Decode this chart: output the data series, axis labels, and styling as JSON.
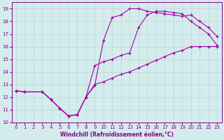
{
  "xlabel": "Windchill (Refroidissement éolien,°C)",
  "ylabel": "",
  "bg_color": "#d4ecec",
  "line_color": "#aa00aa",
  "xlim": [
    -0.5,
    23.5
  ],
  "ylim": [
    10,
    19.5
  ],
  "yticks": [
    10,
    11,
    12,
    13,
    14,
    15,
    16,
    17,
    18,
    19
  ],
  "xticks": [
    0,
    1,
    2,
    3,
    4,
    5,
    6,
    7,
    8,
    9,
    10,
    11,
    12,
    13,
    14,
    15,
    16,
    17,
    18,
    19,
    20,
    21,
    22,
    23
  ],
  "line1_x": [
    0,
    1,
    3,
    4,
    5,
    6,
    7,
    8,
    9,
    10,
    11,
    12,
    13,
    14,
    15,
    16,
    17,
    18,
    19,
    20,
    21,
    22,
    23
  ],
  "line1_y": [
    12.5,
    12.4,
    12.4,
    11.8,
    11.1,
    10.5,
    10.6,
    12.0,
    12.9,
    16.5,
    18.3,
    18.5,
    19.0,
    19.0,
    18.8,
    18.7,
    18.6,
    18.5,
    18.4,
    18.5,
    18.0,
    17.5,
    16.8
  ],
  "line2_x": [
    0,
    1,
    3,
    4,
    5,
    6,
    7,
    8,
    9,
    10,
    11,
    12,
    13,
    14,
    15,
    16,
    17,
    18,
    19,
    20,
    21,
    22,
    23
  ],
  "line2_y": [
    12.5,
    12.4,
    12.4,
    11.8,
    11.1,
    10.5,
    10.6,
    12.0,
    14.5,
    14.8,
    15.0,
    15.3,
    15.5,
    17.5,
    18.5,
    18.8,
    18.8,
    18.7,
    18.6,
    18.0,
    17.5,
    17.0,
    16.1
  ],
  "line3_x": [
    0,
    1,
    3,
    4,
    5,
    6,
    7,
    8,
    9,
    10,
    11,
    12,
    13,
    14,
    15,
    16,
    17,
    18,
    19,
    20,
    21,
    22,
    23
  ],
  "line3_y": [
    12.5,
    12.4,
    12.4,
    11.8,
    11.1,
    10.5,
    10.6,
    12.0,
    13.0,
    13.2,
    13.5,
    13.8,
    14.0,
    14.3,
    14.6,
    14.9,
    15.2,
    15.5,
    15.7,
    16.0,
    16.0,
    16.0,
    16.0
  ]
}
